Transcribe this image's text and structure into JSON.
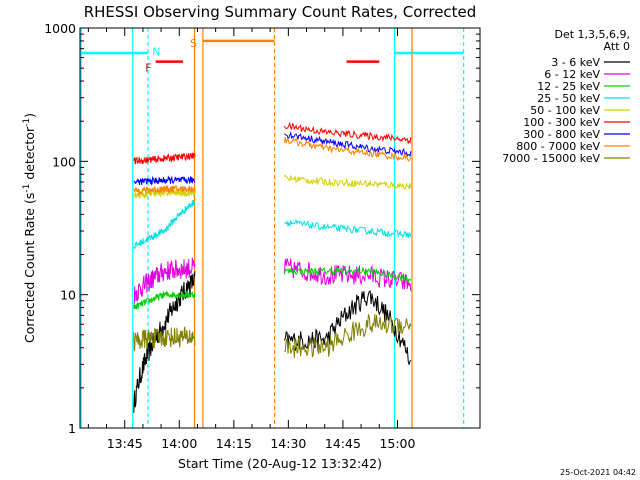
{
  "chart_data": {
    "type": "line",
    "title": "RHESSI Observing Summary Count Rates, Corrected",
    "xlabel": "Start Time (20-Aug-12 13:32:42)",
    "ylabel_main": "Corrected Count Rate (s",
    "ylabel_sup1": "-1",
    "ylabel_mid": " detector",
    "ylabel_sup2": "-1",
    "ylabel_end": ")",
    "y_scale": "log",
    "ylim": [
      1,
      1000
    ],
    "xlim_minutes_after_start": [
      0,
      110
    ],
    "x_tick_labels": [
      "13:45",
      "14:00",
      "14:15",
      "14:30",
      "14:45",
      "15:00"
    ],
    "x_tick_minutes": [
      12.3,
      27.3,
      42.3,
      57.3,
      72.3,
      87.3
    ],
    "y_tick_labels": [
      "1",
      "10",
      "100",
      "1000"
    ],
    "y_tick_values": [
      1,
      10,
      100,
      1000
    ],
    "legend_header": [
      "Det 1,3,5,6,9,",
      "Att 0"
    ],
    "series": [
      {
        "name": "3 - 6 keV",
        "color": "#000000",
        "seg1": [
          1.5,
          6,
          13
        ],
        "seg2": [
          4.5,
          4.6,
          10,
          3
        ]
      },
      {
        "name": "6 - 12 keV",
        "color": "#e000e0",
        "seg1": [
          10,
          15,
          16
        ],
        "seg2": [
          16,
          14,
          14,
          12
        ]
      },
      {
        "name": "12 - 25 keV",
        "color": "#00d000",
        "seg1": [
          8,
          10,
          10
        ],
        "seg2": [
          15,
          15,
          15,
          13
        ]
      },
      {
        "name": "25 - 50 keV",
        "color": "#00e0e0",
        "seg1": [
          23,
          30,
          50
        ],
        "seg2": [
          35,
          32,
          30,
          28
        ]
      },
      {
        "name": "50 - 100 keV",
        "color": "#d0d000",
        "seg1": [
          55,
          58,
          58
        ],
        "seg2": [
          75,
          70,
          68,
          65
        ]
      },
      {
        "name": "100 - 300 keV",
        "color": "#ff0000",
        "seg1": [
          100,
          105,
          110
        ],
        "seg2": [
          185,
          165,
          155,
          145
        ]
      },
      {
        "name": "300 - 800 keV",
        "color": "#0000ff",
        "seg1": [
          70,
          72,
          72
        ],
        "seg2": [
          160,
          140,
          125,
          115
        ]
      },
      {
        "name": "800 - 7000 keV",
        "color": "#ff8000",
        "seg1": [
          60,
          62,
          62
        ],
        "seg2": [
          145,
          125,
          115,
          105
        ]
      },
      {
        "name": "7000 - 15000 keV",
        "color": "#808000",
        "seg1": [
          4.5,
          4.8,
          4.8
        ],
        "seg2": [
          4,
          4,
          6,
          6
        ]
      }
    ],
    "flags": {
      "saa_label": "S",
      "night_label": "N",
      "flare_label": "F",
      "saa_color": "#ff8000",
      "night_color": "#00ffff",
      "flare_color": "#ff0000"
    },
    "grid": false,
    "legend_position": "right"
  },
  "footer": {
    "timestamp": "25-Oct-2021 04:42"
  }
}
